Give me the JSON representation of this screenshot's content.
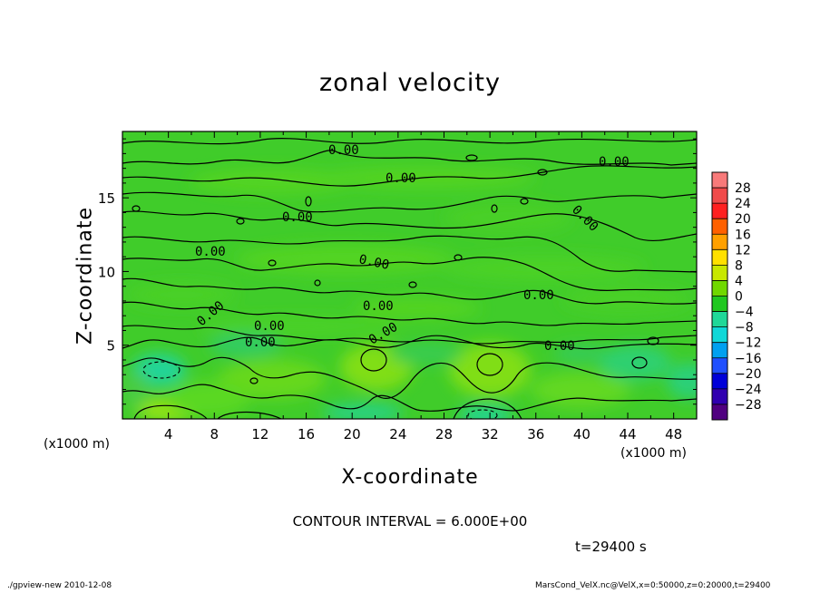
{
  "chart_data": {
    "type": "heatmap",
    "title": "zonal velocity",
    "xlabel": "X-coordinate",
    "ylabel": "Z-coordinate",
    "x_unit": "(x1000 m)",
    "y_unit": "(x1000 m)",
    "xlim": [
      0,
      50
    ],
    "ylim": [
      0,
      19.5
    ],
    "x_ticks": [
      4,
      8,
      12,
      16,
      20,
      24,
      28,
      32,
      36,
      40,
      44,
      48
    ],
    "y_ticks": [
      5,
      10,
      15
    ],
    "colorbar": {
      "levels": [
        28,
        24,
        20,
        16,
        12,
        8,
        4,
        0,
        -4,
        -8,
        -12,
        -16,
        -20,
        -24,
        -28
      ],
      "labels": [
        "28",
        "24",
        "20",
        "16",
        "12",
        "8",
        "4",
        "0",
        "−4",
        "−8",
        "−12",
        "−16",
        "−20",
        "−24",
        "−28"
      ],
      "colors": [
        "#f87a7a",
        "#f04a4a",
        "#ff2020",
        "#ff6000",
        "#ffa000",
        "#ffe000",
        "#c8e800",
        "#70d800",
        "#20c820",
        "#20d898",
        "#10d8d8",
        "#00a0f0",
        "#2050ff",
        "#0000d8",
        "#3000b0",
        "#500080"
      ]
    },
    "contour_labels": [
      "0.00",
      "0.00",
      "0.00",
      "0.00",
      "0.00",
      "0.00",
      "0.00",
      "0.00",
      "0.00",
      "0.00",
      "0.00",
      "0.00",
      "0.00",
      "0.00"
    ],
    "contour_interval_text": "CONTOUR INTERVAL = 6.000E+00",
    "time_text": "t=29400 s"
  },
  "footer": {
    "left": "./gpview-new  2010-12-08",
    "right": "MarsCond_VelX.nc@VelX,x=0:50000,z=0:20000,t=29400"
  },
  "colors": {
    "field_base": "#40cc2a",
    "field_light": "#74dc1c",
    "field_cyan": "#22d498",
    "contour": "#000000"
  }
}
